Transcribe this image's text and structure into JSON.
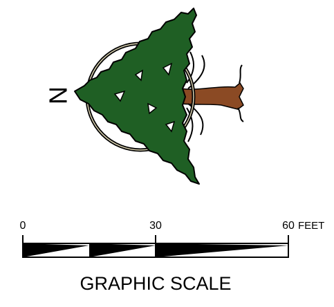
{
  "north_arrow": {
    "label": "N"
  },
  "scale": {
    "ticks": [
      0,
      30,
      60
    ],
    "unit": "FEET",
    "title": "GRAPHIC SCALE"
  }
}
